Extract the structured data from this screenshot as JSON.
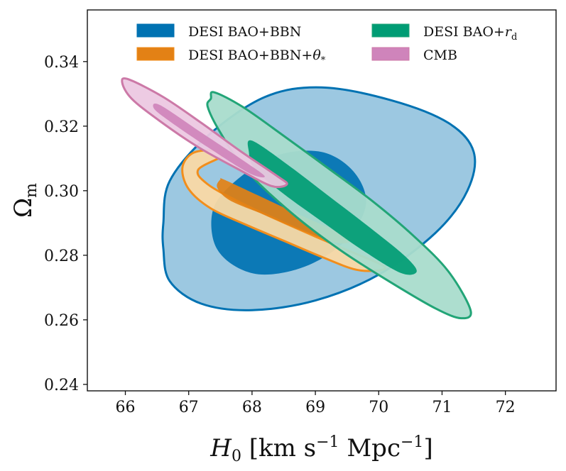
{
  "chart_data": {
    "type": "contour",
    "xlabel": "H_0 [km s^-1 Mpc^-1]",
    "xlabel_parts": {
      "sym": "H",
      "sub": "0",
      "unit": "[km s",
      "u1": "−1",
      "mid": " Mpc",
      "u2": "−1",
      "end": "]"
    },
    "ylabel": "Ω_m",
    "ylabel_parts": {
      "sym": "Ω",
      "sub": "m"
    },
    "xlim": [
      65.4,
      72.8
    ],
    "ylim": [
      0.238,
      0.356
    ],
    "xticks": [
      66,
      67,
      68,
      69,
      70,
      71,
      72
    ],
    "yticks": [
      0.24,
      0.26,
      0.28,
      0.3,
      0.32,
      0.34
    ],
    "xtick_labels": [
      "66",
      "67",
      "68",
      "69",
      "70",
      "71",
      "72"
    ],
    "ytick_labels": [
      "0.24",
      "0.26",
      "0.28",
      "0.30",
      "0.32",
      "0.34"
    ],
    "grid": false,
    "legend_position": "top",
    "series": [
      {
        "name": "DESI BAO+BBN",
        "name_parts": [
          "DESI BAO+BBN"
        ],
        "color": "#0072b2",
        "fill_inner": "#0072b2",
        "fill_outer": "#97c5df",
        "contours": [
          {
            "level": "2σ",
            "points": [
              [
                66.6,
                0.282
              ],
              [
                66.7,
                0.272
              ],
              [
                67.2,
                0.265
              ],
              [
                68.0,
                0.263
              ],
              [
                69.0,
                0.266
              ],
              [
                70.0,
                0.274
              ],
              [
                70.9,
                0.287
              ],
              [
                71.4,
                0.3
              ],
              [
                71.5,
                0.312
              ],
              [
                71.1,
                0.321
              ],
              [
                70.2,
                0.328
              ],
              [
                69.1,
                0.332
              ],
              [
                68.2,
                0.329
              ],
              [
                67.3,
                0.317
              ],
              [
                66.7,
                0.303
              ],
              [
                66.6,
                0.29
              ]
            ]
          },
          {
            "level": "1σ",
            "points": [
              [
                67.4,
                0.284
              ],
              [
                67.7,
                0.277
              ],
              [
                68.2,
                0.274
              ],
              [
                68.9,
                0.277
              ],
              [
                69.5,
                0.285
              ],
              [
                69.8,
                0.296
              ],
              [
                69.6,
                0.306
              ],
              [
                69.1,
                0.312
              ],
              [
                68.4,
                0.311
              ],
              [
                67.8,
                0.304
              ],
              [
                67.4,
                0.295
              ]
            ]
          }
        ]
      },
      {
        "name": "DESI BAO+BBN+θ*",
        "name_parts": [
          "DESI BAO+BBN+",
          "θ",
          "*"
        ],
        "color": "#f28e1c",
        "fill_inner": "#e38115",
        "fill_outer": "#f9d9a5",
        "contours": [
          {
            "level": "2σ",
            "points": [
              [
                67.15,
                0.3065
              ],
              [
                67.3,
                0.302
              ],
              [
                67.8,
                0.2965
              ],
              [
                68.4,
                0.291
              ],
              [
                69.0,
                0.2858
              ],
              [
                69.6,
                0.2808
              ],
              [
                70.05,
                0.277
              ],
              [
                70.05,
                0.2755
              ],
              [
                69.65,
                0.2755
              ],
              [
                69.1,
                0.2795
              ],
              [
                68.5,
                0.2845
              ],
              [
                67.9,
                0.2895
              ],
              [
                67.35,
                0.2945
              ],
              [
                67.0,
                0.3005
              ],
              [
                66.9,
                0.307
              ],
              [
                67.05,
                0.3115
              ],
              [
                67.35,
                0.3125
              ],
              [
                67.55,
                0.311
              ]
            ]
          },
          {
            "level": "1σ",
            "points": [
              [
                67.55,
                0.3035
              ],
              [
                68.1,
                0.2985
              ],
              [
                68.7,
                0.293
              ],
              [
                69.3,
                0.2878
              ],
              [
                69.6,
                0.2848
              ],
              [
                69.35,
                0.2838
              ],
              [
                68.8,
                0.2875
              ],
              [
                68.2,
                0.2925
              ],
              [
                67.65,
                0.297
              ],
              [
                67.45,
                0.301
              ],
              [
                67.5,
                0.3035
              ]
            ]
          }
        ]
      },
      {
        "name": "DESI BAO+r_d",
        "name_parts": [
          "DESI BAO+",
          "r",
          "d"
        ],
        "color": "#22a577",
        "fill_inner": "#009c74",
        "fill_outer": "#a9dccc",
        "contours": [
          {
            "level": "2σ",
            "points": [
              [
                67.35,
                0.3285
              ],
              [
                67.4,
                0.3305
              ],
              [
                67.85,
                0.326
              ],
              [
                68.5,
                0.317
              ],
              [
                69.2,
                0.307
              ],
              [
                69.9,
                0.2968
              ],
              [
                70.55,
                0.286
              ],
              [
                71.1,
                0.275
              ],
              [
                71.45,
                0.263
              ],
              [
                71.3,
                0.2605
              ],
              [
                70.9,
                0.2635
              ],
              [
                70.2,
                0.2715
              ],
              [
                69.4,
                0.2815
              ],
              [
                68.6,
                0.2935
              ],
              [
                67.9,
                0.3065
              ],
              [
                67.5,
                0.318
              ],
              [
                67.3,
                0.326
              ]
            ]
          },
          {
            "level": "1σ",
            "points": [
              [
                68.0,
                0.3155
              ],
              [
                68.6,
                0.3075
              ],
              [
                69.2,
                0.2985
              ],
              [
                69.8,
                0.2895
              ],
              [
                70.4,
                0.28
              ],
              [
                70.6,
                0.275
              ],
              [
                70.35,
                0.2745
              ],
              [
                69.75,
                0.2815
              ],
              [
                69.1,
                0.2905
              ],
              [
                68.5,
                0.299
              ],
              [
                68.05,
                0.3065
              ],
              [
                67.95,
                0.312
              ]
            ]
          }
        ]
      },
      {
        "name": "CMB",
        "name_parts": [
          "CMB"
        ],
        "color": "#cc79a7",
        "fill_inner": "#cf84bb",
        "fill_outer": "#ecc8e2",
        "contours": [
          {
            "level": "2σ",
            "points": [
              [
                66.05,
                0.3345
              ],
              [
                66.6,
                0.329
              ],
              [
                67.2,
                0.321
              ],
              [
                67.8,
                0.3125
              ],
              [
                68.4,
                0.3045
              ],
              [
                68.55,
                0.302
              ],
              [
                68.3,
                0.3015
              ],
              [
                67.75,
                0.307
              ],
              [
                67.15,
                0.3135
              ],
              [
                66.55,
                0.3215
              ],
              [
                66.1,
                0.3285
              ],
              [
                65.95,
                0.3335
              ]
            ]
          },
          {
            "level": "1σ",
            "points": [
              [
                66.55,
                0.3265
              ],
              [
                67.2,
                0.318
              ],
              [
                67.85,
                0.3095
              ],
              [
                68.2,
                0.3045
              ],
              [
                67.95,
                0.3055
              ],
              [
                67.3,
                0.3135
              ],
              [
                66.7,
                0.3215
              ],
              [
                66.45,
                0.3255
              ]
            ]
          }
        ]
      }
    ],
    "legend": {
      "items": [
        {
          "label_parts": [
            "DESI BAO+BBN"
          ],
          "series": 0,
          "column": 0,
          "row": 0
        },
        {
          "label_parts": [
            "DESI BAO+BBN+",
            "θ",
            "*"
          ],
          "series": 1,
          "column": 0,
          "row": 1
        },
        {
          "label_parts": [
            "DESI BAO+",
            "r",
            "d"
          ],
          "series": 2,
          "column": 1,
          "row": 0
        },
        {
          "label_parts": [
            "CMB"
          ],
          "series": 3,
          "column": 1,
          "row": 1
        }
      ]
    }
  }
}
